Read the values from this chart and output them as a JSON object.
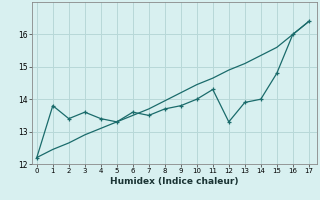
{
  "xlabel": "Humidex (Indice chaleur)",
  "x": [
    0,
    1,
    2,
    3,
    4,
    5,
    6,
    7,
    8,
    9,
    10,
    11,
    12,
    13,
    14,
    15,
    16,
    17
  ],
  "y_curve": [
    12.2,
    13.8,
    13.4,
    13.6,
    13.4,
    13.3,
    13.6,
    13.5,
    13.7,
    13.8,
    14.0,
    14.3,
    13.3,
    13.9,
    14.0,
    14.8,
    16.0,
    16.4
  ],
  "y_trend": [
    12.2,
    12.45,
    12.65,
    12.9,
    13.1,
    13.3,
    13.5,
    13.7,
    13.95,
    14.2,
    14.45,
    14.65,
    14.9,
    15.1,
    15.35,
    15.6,
    16.0,
    16.4
  ],
  "line_color": "#1a6b6b",
  "bg_color": "#d8f0f0",
  "grid_color": "#b8d8d8",
  "ylim": [
    12,
    17
  ],
  "xlim": [
    -0.3,
    17.5
  ],
  "yticks": [
    12,
    13,
    14,
    15,
    16
  ],
  "xticks": [
    0,
    1,
    2,
    3,
    4,
    5,
    6,
    7,
    8,
    9,
    10,
    11,
    12,
    13,
    14,
    15,
    16,
    17
  ]
}
